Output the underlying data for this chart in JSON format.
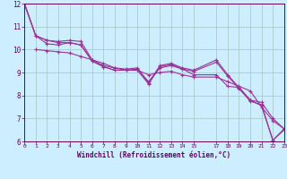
{
  "title": "",
  "xlabel": "Windchill (Refroidissement éolien,°C)",
  "ylabel": "",
  "bg_color": "#cceeff",
  "grid_color": "#aacccc",
  "line_color": "#993399",
  "xlim": [
    0,
    23
  ],
  "ylim": [
    6,
    12
  ],
  "xticks": [
    0,
    1,
    2,
    3,
    4,
    5,
    6,
    7,
    8,
    9,
    10,
    11,
    12,
    13,
    14,
    15,
    17,
    18,
    19,
    20,
    21,
    22,
    23
  ],
  "yticks": [
    6,
    7,
    8,
    9,
    10,
    11,
    12
  ],
  "series": [
    {
      "x": [
        0,
        1,
        2,
        3,
        4,
        5,
        6,
        7,
        8,
        9,
        10,
        11,
        12,
        13,
        14,
        15,
        17,
        18,
        19,
        20,
        21,
        22,
        23
      ],
      "y": [
        12.0,
        10.6,
        10.4,
        10.35,
        10.4,
        10.35,
        9.55,
        9.3,
        9.2,
        9.15,
        9.2,
        8.55,
        9.3,
        9.4,
        9.2,
        9.1,
        9.55,
        8.9,
        8.35,
        7.8,
        7.7,
        7.0,
        6.55
      ]
    },
    {
      "x": [
        0,
        1,
        2,
        3,
        4,
        5,
        6,
        7,
        8,
        9,
        10,
        11,
        12,
        13,
        14,
        15,
        17,
        18,
        19,
        20,
        21,
        22,
        23
      ],
      "y": [
        12.0,
        10.6,
        10.4,
        10.3,
        10.3,
        10.2,
        9.5,
        9.25,
        9.1,
        9.1,
        9.1,
        8.5,
        9.25,
        9.35,
        9.15,
        9.05,
        9.45,
        8.85,
        8.3,
        7.75,
        7.6,
        6.05,
        6.55
      ]
    },
    {
      "x": [
        0,
        1,
        2,
        3,
        4,
        5,
        6,
        7,
        8,
        9,
        10,
        11,
        12,
        13,
        14,
        15,
        17,
        18,
        19,
        20,
        21,
        22,
        23
      ],
      "y": [
        12.0,
        10.6,
        10.25,
        10.2,
        10.3,
        10.2,
        9.5,
        9.25,
        9.1,
        9.1,
        9.15,
        8.6,
        9.2,
        9.3,
        9.15,
        8.9,
        8.9,
        8.4,
        8.35,
        7.8,
        7.55,
        6.05,
        6.5
      ]
    },
    {
      "x": [
        1,
        2,
        3,
        4,
        5,
        6,
        7,
        8,
        9,
        10,
        11,
        12,
        13,
        14,
        15,
        17,
        18,
        19,
        20,
        21,
        22,
        23
      ],
      "y": [
        10.0,
        9.95,
        9.9,
        9.85,
        9.7,
        9.55,
        9.4,
        9.2,
        9.1,
        9.1,
        8.9,
        9.0,
        9.05,
        8.9,
        8.8,
        8.8,
        8.6,
        8.4,
        8.2,
        7.5,
        6.9,
        6.55
      ]
    }
  ]
}
